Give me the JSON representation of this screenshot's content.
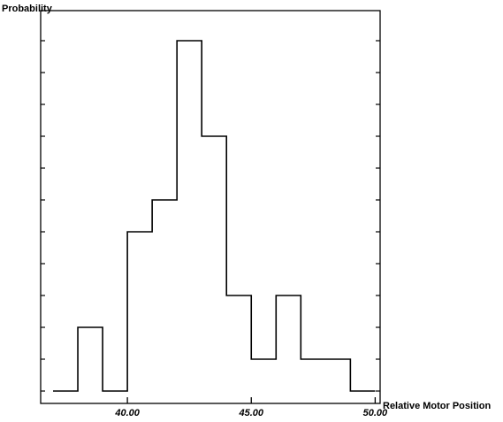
{
  "chart_data": {
    "type": "bar",
    "subtype": "step-histogram",
    "title": "",
    "xlabel": "Relative Motor Position",
    "ylabel": "Probability",
    "xlim": [
      36.5,
      50.2
    ],
    "ylim": [
      0,
      11.5
    ],
    "x_ticks": [
      {
        "value": 40,
        "label": "40.00"
      },
      {
        "value": 45,
        "label": "45.00"
      },
      {
        "value": 50,
        "label": "50.00"
      }
    ],
    "bin_edges": [
      37,
      38,
      39,
      40,
      41,
      42,
      43,
      44,
      45,
      46,
      47,
      48,
      49,
      50
    ],
    "values": [
      0,
      2,
      0,
      5,
      6,
      11,
      8,
      3,
      1,
      3,
      1,
      1,
      0
    ],
    "grid": false,
    "frame": "box",
    "line_color": "#000000"
  }
}
